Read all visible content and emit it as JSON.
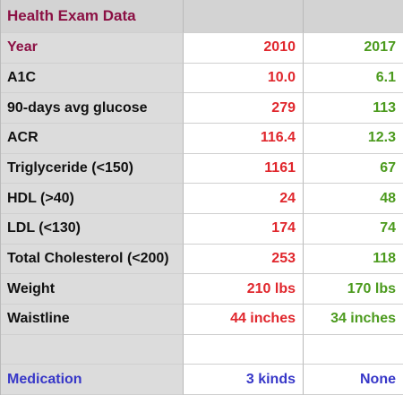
{
  "table": {
    "title": "Health Exam Data",
    "rows": [
      {
        "label": "Year",
        "v2010": "2010",
        "v2017": "2017"
      },
      {
        "label": "A1C",
        "v2010": "10.0",
        "v2017": "6.1"
      },
      {
        "label": "90-days avg glucose",
        "v2010": "279",
        "v2017": "113"
      },
      {
        "label": "ACR",
        "v2010": "116.4",
        "v2017": "12.3"
      },
      {
        "label": "Triglyceride (<150)",
        "v2010": "1161",
        "v2017": "67"
      },
      {
        "label": "HDL (>40)",
        "v2010": "24",
        "v2017": "48"
      },
      {
        "label": "LDL (<130)",
        "v2010": "174",
        "v2017": "74"
      },
      {
        "label": "Total Cholesterol (<200)",
        "v2010": "253",
        "v2017": "118"
      },
      {
        "label": "Weight",
        "v2010": "210 lbs",
        "v2017": "170 lbs"
      },
      {
        "label": "Waistline",
        "v2010": "44 inches",
        "v2017": "34 inches"
      },
      {
        "label": "",
        "v2010": "",
        "v2017": ""
      },
      {
        "label": "Medication",
        "v2010": "3 kinds",
        "v2017": "None"
      }
    ]
  },
  "colors": {
    "header_text": "#8b1044",
    "value_2010": "#e0262c",
    "value_2017": "#4b9a1d",
    "medication": "#3737c8",
    "label_bg": "#dcdcdc"
  }
}
